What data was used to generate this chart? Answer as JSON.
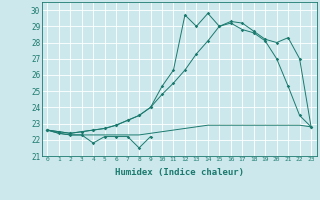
{
  "xlabel": "Humidex (Indice chaleur)",
  "xlim": [
    -0.5,
    23.5
  ],
  "ylim": [
    21,
    30.5
  ],
  "yticks": [
    21,
    22,
    23,
    24,
    25,
    26,
    27,
    28,
    29,
    30
  ],
  "xticks": [
    0,
    1,
    2,
    3,
    4,
    5,
    6,
    7,
    8,
    9,
    10,
    11,
    12,
    13,
    14,
    15,
    16,
    17,
    18,
    19,
    20,
    21,
    22,
    23
  ],
  "bg_color": "#cde8ec",
  "grid_color": "#ffffff",
  "line_color": "#1a7a6e",
  "series1": [
    22.6,
    22.4,
    22.3,
    22.3,
    21.8,
    22.2,
    22.2,
    22.2,
    21.5,
    22.2,
    null,
    null,
    null,
    null,
    null,
    null,
    null,
    null,
    null,
    null,
    null,
    null,
    null,
    null
  ],
  "series2": [
    22.6,
    22.4,
    22.3,
    22.3,
    22.3,
    22.3,
    22.3,
    22.3,
    22.3,
    22.4,
    22.5,
    22.6,
    22.7,
    22.8,
    22.9,
    22.9,
    22.9,
    22.9,
    22.9,
    22.9,
    22.9,
    22.9,
    22.9,
    22.8
  ],
  "series3": [
    22.6,
    22.5,
    22.4,
    22.5,
    22.6,
    22.7,
    22.9,
    23.2,
    23.5,
    24.0,
    24.8,
    25.5,
    26.3,
    27.3,
    28.1,
    29.0,
    29.2,
    28.8,
    28.6,
    28.1,
    27.0,
    25.3,
    23.5,
    22.8
  ],
  "series4": [
    22.6,
    22.5,
    22.4,
    22.5,
    22.6,
    22.7,
    22.9,
    23.2,
    23.5,
    24.0,
    25.3,
    26.3,
    29.7,
    29.0,
    29.8,
    29.0,
    29.3,
    29.2,
    28.7,
    28.2,
    28.0,
    28.3,
    27.0,
    22.8
  ]
}
